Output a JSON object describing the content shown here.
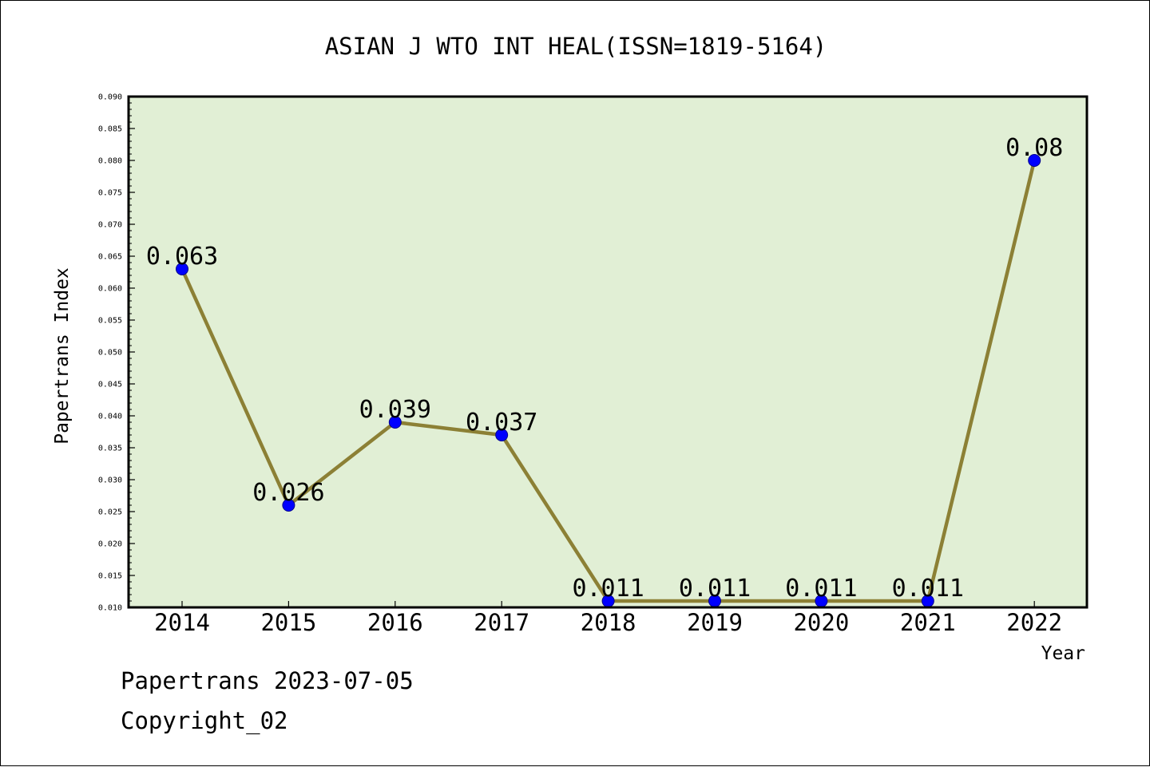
{
  "footer": {
    "line1": "Papertrans 2023-07-05",
    "line2": "Copyright_02"
  },
  "colors": {
    "plot_background": "#e1efd5",
    "line": "#8c8035",
    "marker": "#0000ff",
    "marker_edge": "#00008b"
  },
  "chart_data": {
    "type": "line",
    "title": "ASIAN J WTO INT HEAL(ISSN=1819-5164)",
    "xlabel": "Year",
    "ylabel": "Papertrans Index",
    "categories": [
      "2014",
      "2015",
      "2016",
      "2017",
      "2018",
      "2019",
      "2020",
      "2021",
      "2022"
    ],
    "series": [
      {
        "values": [
          0.063,
          0.026,
          0.039,
          0.037,
          0.011,
          0.011,
          0.011,
          0.011,
          0.08
        ],
        "labels": [
          "0.063",
          "0.026",
          "0.039",
          "0.037",
          "0.011",
          "0.011",
          "0.011",
          "0.011",
          "0.08"
        ]
      }
    ],
    "ylim": [
      0.01,
      0.09
    ],
    "yticks": [
      "0.010",
      "0.015",
      "0.020",
      "0.025",
      "0.030",
      "0.035",
      "0.040",
      "0.045",
      "0.050",
      "0.055",
      "0.060",
      "0.065",
      "0.070",
      "0.075",
      "0.080",
      "0.085",
      "0.090"
    ],
    "grid": false,
    "legend": "none"
  }
}
